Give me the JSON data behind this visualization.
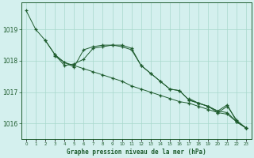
{
  "xlabel": "Graphe pression niveau de la mer (hPa)",
  "x": [
    0,
    1,
    2,
    3,
    4,
    5,
    6,
    7,
    8,
    9,
    10,
    11,
    12,
    13,
    14,
    15,
    16,
    17,
    18,
    19,
    20,
    21,
    22,
    23
  ],
  "line1": [
    1019.6,
    1019.0,
    null,
    null,
    null,
    null,
    null,
    null,
    null,
    null,
    null,
    null,
    null,
    null,
    null,
    null,
    null,
    null,
    null,
    null,
    null,
    null,
    null,
    null
  ],
  "line2": [
    1019.6,
    1019.0,
    1018.65,
    1018.2,
    1017.95,
    1017.85,
    1017.75,
    1017.65,
    1017.55,
    1017.45,
    1017.35,
    1017.2,
    1017.1,
    1017.0,
    1016.9,
    1016.8,
    1016.7,
    1016.65,
    1016.55,
    1016.45,
    1016.35,
    1016.3,
    1016.05,
    1015.85
  ],
  "line3": [
    null,
    null,
    1018.65,
    1018.2,
    1017.85,
    1017.9,
    1018.05,
    1018.4,
    1018.45,
    1018.5,
    1018.45,
    1018.35,
    1017.85,
    1017.6,
    1017.35,
    1017.1,
    1017.05,
    1016.75,
    1016.65,
    1016.55,
    1016.4,
    1016.35,
    1016.05,
    1015.85
  ],
  "line4": [
    null,
    null,
    null,
    1018.15,
    1017.95,
    1017.8,
    1018.35,
    1018.45,
    1018.5,
    1018.5,
    1018.5,
    1018.4,
    1017.85,
    1017.6,
    1017.35,
    1017.1,
    1017.05,
    1016.75,
    1016.65,
    1016.55,
    1016.4,
    1016.6,
    1016.05,
    1015.85
  ],
  "line5": [
    null,
    null,
    null,
    null,
    null,
    null,
    null,
    null,
    null,
    null,
    null,
    null,
    null,
    null,
    null,
    null,
    null,
    1016.8,
    1016.65,
    1016.55,
    1016.35,
    1016.55,
    1016.1,
    1015.85
  ],
  "bg_color": "#d4f0ee",
  "grid_color": "#a8d8cc",
  "line_color": "#1e5c2e",
  "ylim": [
    1015.5,
    1019.85
  ],
  "yticks": [
    1016,
    1017,
    1018,
    1019
  ],
  "xticks": [
    0,
    1,
    2,
    3,
    4,
    5,
    6,
    7,
    8,
    9,
    10,
    11,
    12,
    13,
    14,
    15,
    16,
    17,
    18,
    19,
    20,
    21,
    22,
    23
  ],
  "fig_width": 3.2,
  "fig_height": 2.0,
  "dpi": 100
}
